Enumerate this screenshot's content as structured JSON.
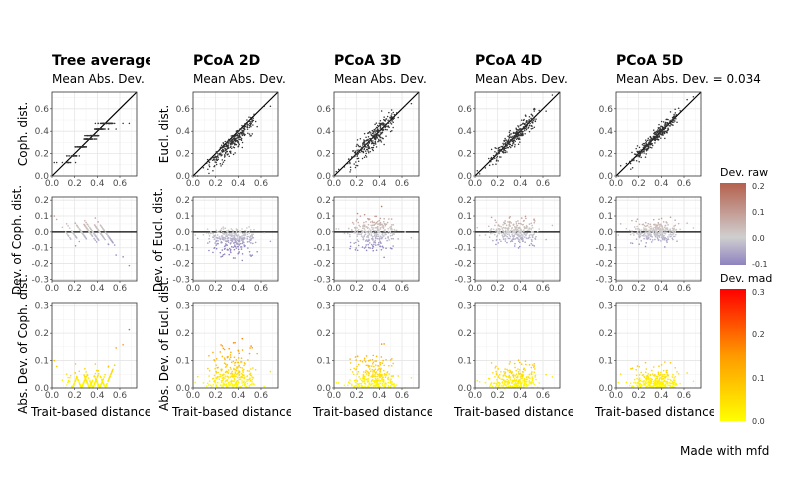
{
  "caption": "Made with mfd",
  "colors": {
    "raw_neg": "#8f82bf",
    "raw_mid": "#cfcfcf",
    "raw_pos": "#b4604e",
    "mad_low": "#ffff00",
    "mad_mid": "#ff9900",
    "mad_high": "#ff0000",
    "points_top": "#333333"
  },
  "legend": {
    "raw": {
      "title": "Dev. raw",
      "ticks": [
        "0.2",
        "0.1",
        "0.0",
        "-0.1"
      ],
      "range": [
        -0.1,
        0.2
      ]
    },
    "mad": {
      "title": "Dev. mad",
      "ticks": [
        "0.3",
        "0.2",
        "0.1",
        "0.0"
      ],
      "range": [
        0,
        0.3
      ]
    }
  },
  "chart_data": {
    "type": "scatter",
    "description_columns": [
      "Tree average",
      "PCoA 2D",
      "PCoA 3D",
      "PCoA 4D",
      "PCoA 5D"
    ],
    "columns": [
      {
        "key": "tree",
        "title": "Tree average",
        "subtitle": "Mean Abs. Dev.",
        "ylabel_top": "Coph. dist.",
        "ylabel_mid": "Dev. of Coph. dist.",
        "ylabel_bot": "Abs. Dev. of Coph. dist.",
        "xlabel": "Trait-based distance",
        "spread": 0.08
      },
      {
        "key": "p2",
        "title": "PCoA 2D",
        "subtitle": "Mean Abs. Dev.",
        "ylabel_top": "Eucl. dist.",
        "ylabel_mid": "Dev. of Eucl. dist.",
        "ylabel_bot": "Abs. Dev. of Eucl. dist.",
        "xlabel": "Trait-based distance",
        "spread": 0.07
      },
      {
        "key": "p3",
        "title": "PCoA 3D",
        "subtitle": "Mean Abs. Dev.",
        "xlabel": "Trait-based distance",
        "spread": 0.05
      },
      {
        "key": "p4",
        "title": "PCoA 4D",
        "subtitle": "Mean Abs. Dev.",
        "xlabel": "Trait-based distance",
        "spread": 0.038
      },
      {
        "key": "p5",
        "title": "PCoA 5D",
        "subtitle": "Mean Abs. Dev. = 0.034",
        "xlabel": "Trait-based distance",
        "spread": 0.032
      }
    ],
    "rows": [
      {
        "key": "top",
        "xlim": [
          0,
          0.75
        ],
        "ylim": [
          0,
          0.75
        ],
        "xticks": [
          "0.0",
          "0.2",
          "0.4",
          "0.6"
        ],
        "yticks": [
          "0.0",
          "0.2",
          "0.4",
          "0.6"
        ]
      },
      {
        "key": "mid",
        "xlim": [
          0,
          0.75
        ],
        "ylim": [
          -0.31,
          0.22
        ],
        "xticks": [
          "0.0",
          "0.2",
          "0.4",
          "0.6"
        ],
        "yticks": [
          "-0.3",
          "-0.2",
          "-0.1",
          "0.0",
          "0.1",
          "0.2"
        ]
      },
      {
        "key": "bot",
        "xlim": [
          0,
          0.75
        ],
        "ylim": [
          0,
          0.31
        ],
        "xticks": [
          "0.0",
          "0.2",
          "0.4",
          "0.6"
        ],
        "yticks": [
          "0.0",
          "0.1",
          "0.2",
          "0.3"
        ]
      }
    ],
    "tree_levels": [
      0.12,
      0.18,
      0.26,
      0.33,
      0.36,
      0.42,
      0.47
    ],
    "n_points": 300
  }
}
